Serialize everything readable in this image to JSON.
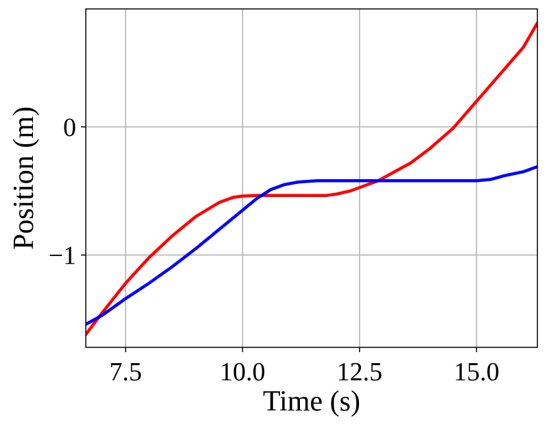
{
  "chart_data": {
    "type": "line",
    "title": "",
    "xlabel": "Time (s)",
    "ylabel": "Position (m)",
    "xlim": [
      6.65,
      16.3
    ],
    "ylim": [
      -1.72,
      0.92
    ],
    "xticks": [
      7.5,
      10.0,
      12.5,
      15.0
    ],
    "xtick_labels": [
      "7.5",
      "10.0",
      "12.5",
      "15.0"
    ],
    "yticks": [
      -1,
      0
    ],
    "ytick_labels": [
      "−1",
      "0"
    ],
    "grid": true,
    "legend": "none",
    "series": [
      {
        "color": "#ff0000",
        "x": [
          6.65,
          7.0,
          7.5,
          8.0,
          8.5,
          9.0,
          9.5,
          9.8,
          10.0,
          10.3,
          10.6,
          11.0,
          11.5,
          11.8,
          12.0,
          12.3,
          12.6,
          12.9,
          13.2,
          13.6,
          14.0,
          14.5,
          15.0,
          15.5,
          16.0,
          16.3
        ],
        "y": [
          -1.62,
          -1.45,
          -1.22,
          -1.02,
          -0.85,
          -0.7,
          -0.59,
          -0.55,
          -0.54,
          -0.535,
          -0.535,
          -0.535,
          -0.535,
          -0.535,
          -0.525,
          -0.5,
          -0.46,
          -0.42,
          -0.36,
          -0.28,
          -0.17,
          -0.01,
          0.2,
          0.41,
          0.62,
          0.81
        ]
      },
      {
        "color": "#0000ff",
        "x": [
          6.65,
          7.0,
          7.5,
          8.0,
          8.5,
          9.0,
          9.5,
          10.0,
          10.3,
          10.6,
          10.9,
          11.2,
          11.6,
          12.0,
          13.0,
          14.0,
          15.0,
          15.3,
          15.6,
          16.0,
          16.3
        ],
        "y": [
          -1.54,
          -1.47,
          -1.34,
          -1.22,
          -1.09,
          -0.95,
          -0.8,
          -0.65,
          -0.56,
          -0.49,
          -0.45,
          -0.43,
          -0.42,
          -0.42,
          -0.42,
          -0.42,
          -0.42,
          -0.41,
          -0.38,
          -0.35,
          -0.31
        ]
      }
    ]
  }
}
